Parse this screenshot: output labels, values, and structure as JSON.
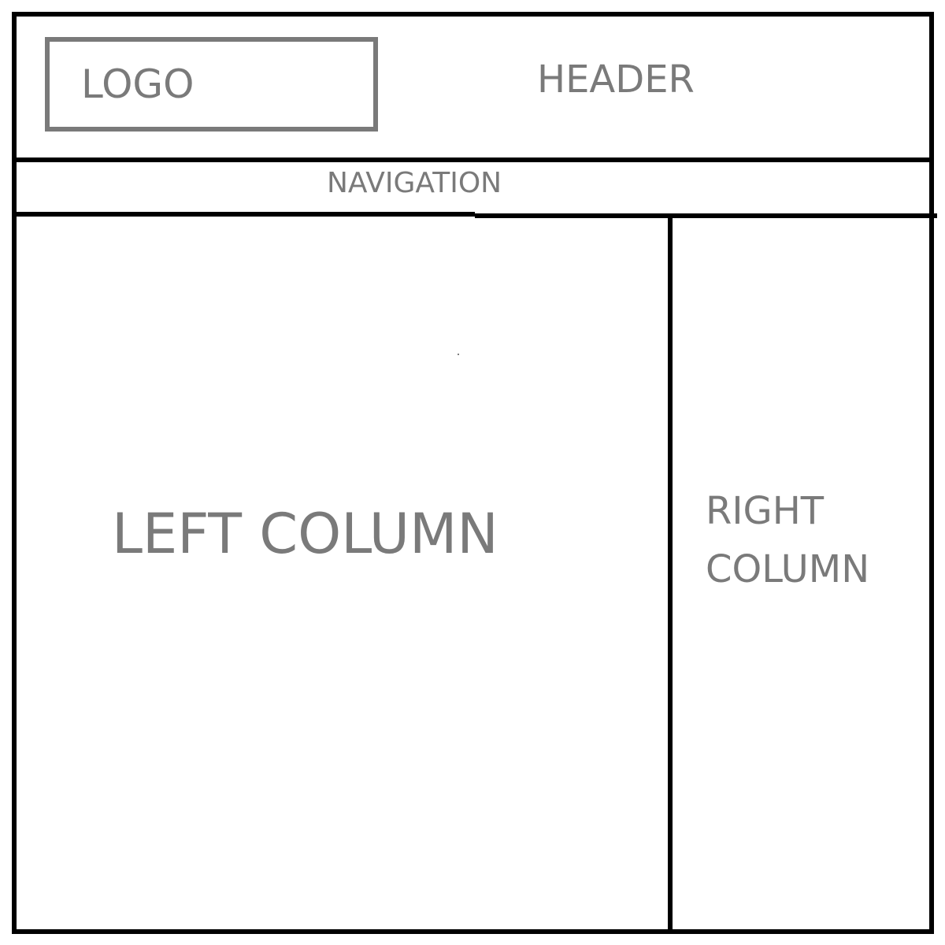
{
  "header": {
    "logo_label": "LOGO",
    "title": "HEADER"
  },
  "navigation": {
    "label": "NAVIGATION"
  },
  "left_column": {
    "label": "LEFT COLUMN"
  },
  "right_column": {
    "label_line1": "RIGHT",
    "label_line2": "COLUMN"
  },
  "colors": {
    "frame": "#000000",
    "text": "#7a7a7a",
    "logo_border": "#7a7a7a",
    "background": "#ffffff"
  }
}
